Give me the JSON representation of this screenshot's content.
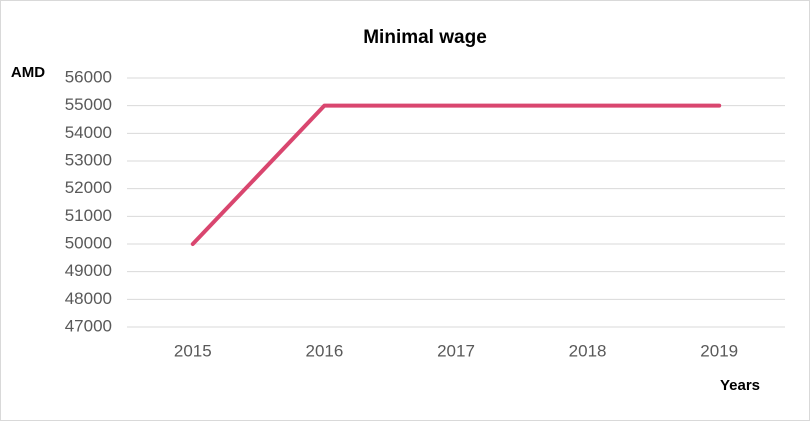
{
  "chart_data": {
    "type": "line",
    "title": "Minimal wage",
    "y_label": "AMD",
    "x_label": "Years",
    "categories": [
      "2015",
      "2016",
      "2017",
      "2018",
      "2019"
    ],
    "series": [
      {
        "name": "Minimal wage",
        "color": "#d9466f",
        "values": [
          50000,
          55000,
          55000,
          55000,
          55000
        ]
      }
    ],
    "ylim": [
      47000,
      56000
    ],
    "yticks": [
      47000,
      48000,
      49000,
      50000,
      51000,
      52000,
      53000,
      54000,
      55000,
      56000
    ],
    "grid": true
  }
}
